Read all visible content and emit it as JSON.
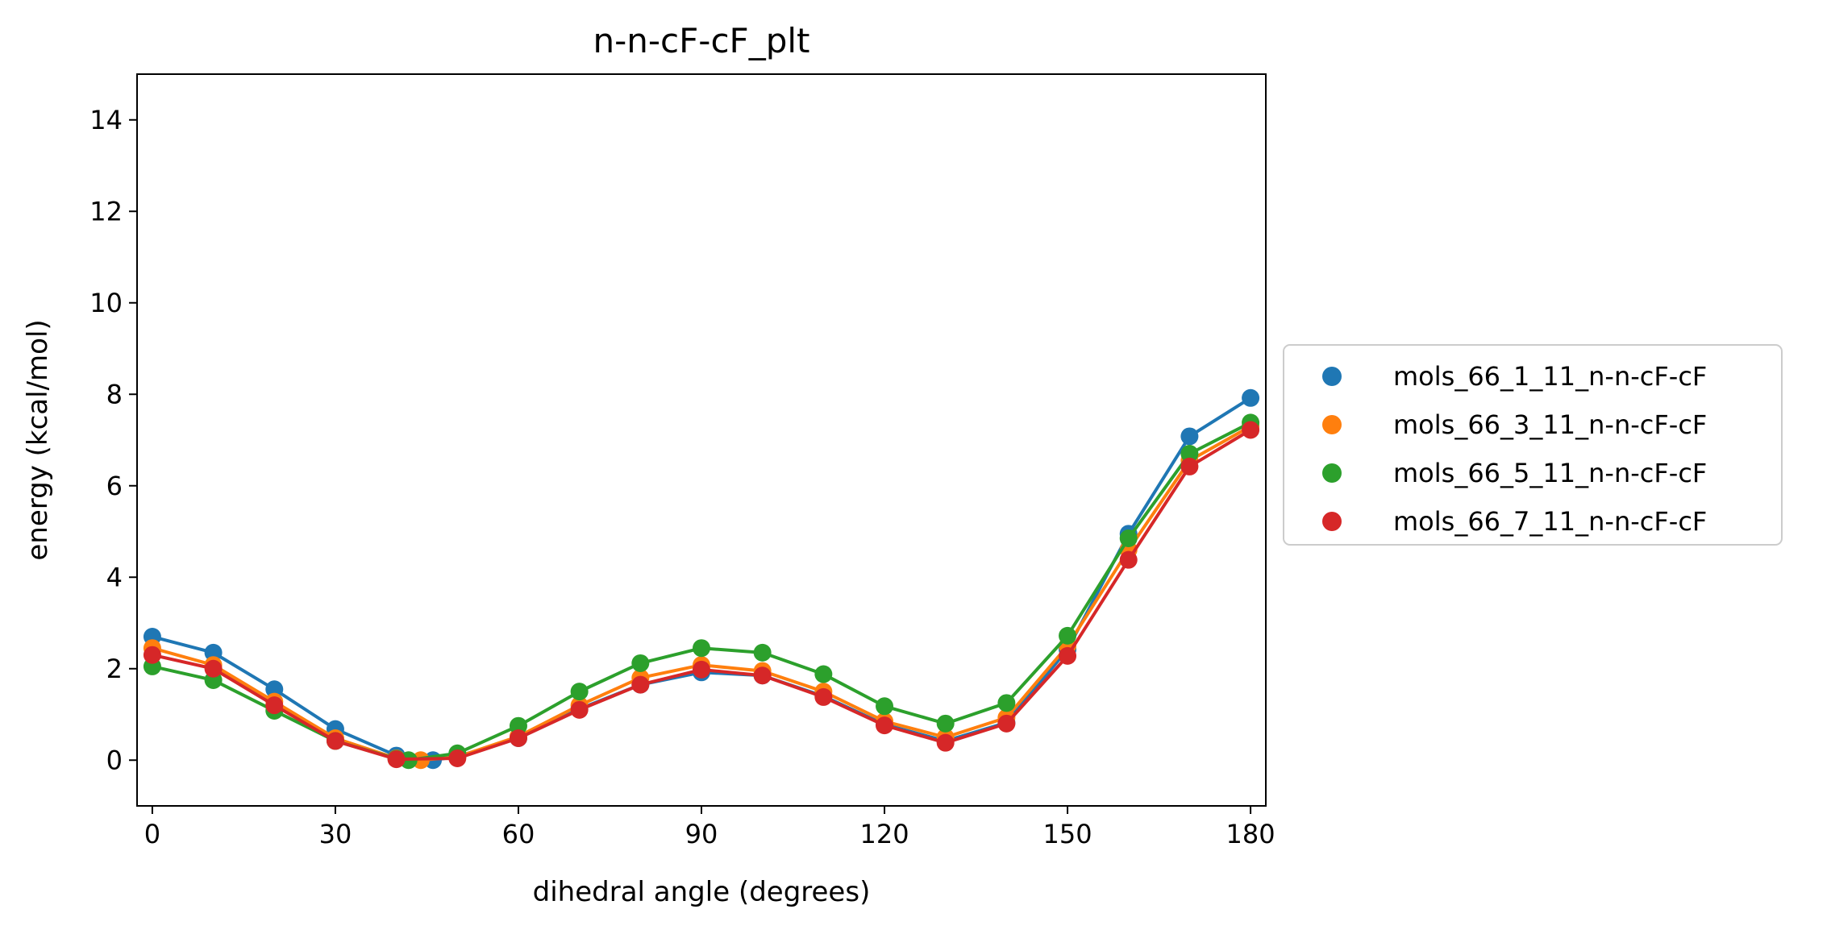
{
  "chart_data": {
    "type": "line",
    "title": "n-n-cF-cF_plt",
    "xlabel": "dihedral angle (degrees)",
    "ylabel": "energy (kcal/mol)",
    "xlim": [
      -2.5,
      182.5
    ],
    "ylim": [
      -1,
      15
    ],
    "xticks": [
      0,
      30,
      60,
      90,
      120,
      150,
      180
    ],
    "yticks": [
      0,
      2,
      4,
      6,
      8,
      10,
      12,
      14
    ],
    "legend_position": "center-right outside",
    "series": [
      {
        "name": "mols_66_1_11_n-n-cF-cF",
        "color": "#1f77b4",
        "x": [
          0,
          10,
          20,
          30,
          40,
          46,
          50,
          60,
          70,
          80,
          90,
          100,
          110,
          120,
          130,
          140,
          150,
          160,
          170,
          180
        ],
        "y": [
          2.7,
          2.35,
          1.55,
          0.68,
          0.1,
          0.0,
          0.08,
          0.48,
          1.12,
          1.65,
          1.92,
          1.85,
          1.4,
          0.78,
          0.42,
          0.82,
          2.42,
          4.95,
          7.08,
          7.92
        ]
      },
      {
        "name": "mols_66_3_11_n-n-cF-cF",
        "color": "#ff7f0e",
        "x": [
          0,
          10,
          20,
          30,
          40,
          44,
          50,
          60,
          70,
          80,
          90,
          100,
          110,
          120,
          130,
          140,
          150,
          160,
          170,
          180
        ],
        "y": [
          2.45,
          2.08,
          1.28,
          0.48,
          0.04,
          0.0,
          0.07,
          0.52,
          1.2,
          1.8,
          2.08,
          1.95,
          1.5,
          0.85,
          0.5,
          0.93,
          2.5,
          4.6,
          6.55,
          7.3
        ]
      },
      {
        "name": "mols_66_5_11_n-n-cF-cF",
        "color": "#2ca02c",
        "x": [
          0,
          10,
          20,
          30,
          40,
          42,
          50,
          60,
          70,
          80,
          90,
          100,
          110,
          120,
          130,
          140,
          150,
          160,
          170,
          180
        ],
        "y": [
          2.05,
          1.75,
          1.08,
          0.42,
          0.03,
          0.0,
          0.15,
          0.75,
          1.5,
          2.12,
          2.45,
          2.35,
          1.88,
          1.18,
          0.8,
          1.25,
          2.72,
          4.85,
          6.7,
          7.38
        ]
      },
      {
        "name": "mols_66_7_11_n-n-cF-cF",
        "color": "#d62728",
        "x": [
          0,
          10,
          20,
          30,
          40,
          50,
          60,
          70,
          80,
          90,
          100,
          110,
          120,
          130,
          140,
          150,
          160,
          170,
          180
        ],
        "y": [
          2.3,
          2.0,
          1.2,
          0.42,
          0.02,
          0.04,
          0.48,
          1.1,
          1.65,
          1.98,
          1.85,
          1.38,
          0.76,
          0.38,
          0.8,
          2.28,
          4.38,
          6.42,
          7.22
        ]
      }
    ]
  }
}
